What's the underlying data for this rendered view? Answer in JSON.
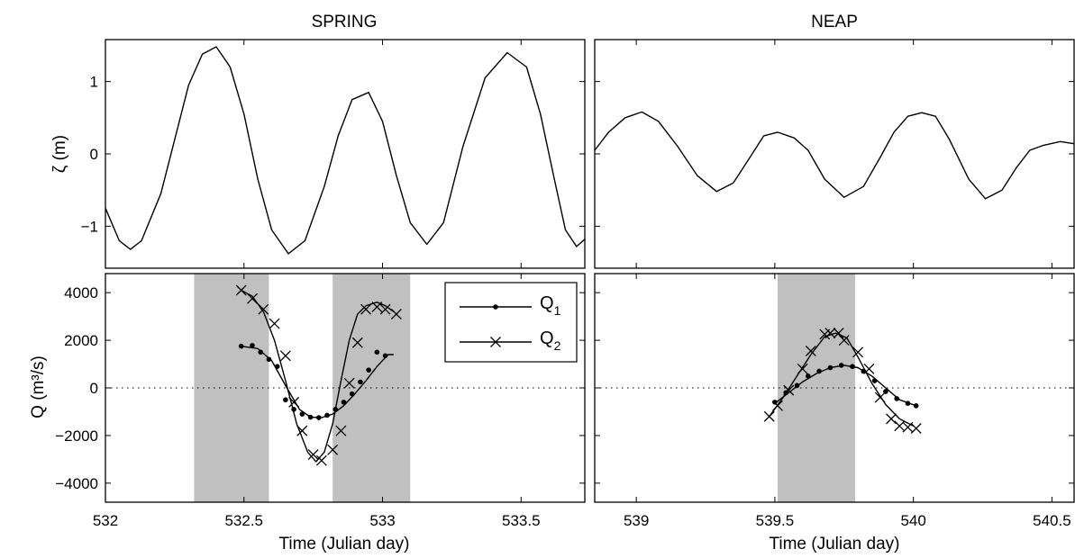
{
  "chart_data": [
    {
      "type": "line",
      "panel": "spring-elevation",
      "title": "SPRING",
      "ylabel": "ζ (m)",
      "xlabel": "",
      "xlim": [
        532,
        533.73
      ],
      "ylim": [
        -1.58,
        1.58
      ],
      "xticks": [
        532,
        532.5,
        533,
        533.5
      ],
      "yticks": [
        -1,
        0,
        1
      ],
      "ytick_labels": [
        "−1",
        "0",
        "1"
      ],
      "xtick_labels_visible": false,
      "series": [
        {
          "x": [
            532.0,
            532.05,
            532.09,
            532.13,
            532.2,
            532.25,
            532.3,
            532.35,
            532.4,
            532.45,
            532.5,
            532.55,
            532.6,
            532.66,
            532.72,
            532.79,
            532.84,
            532.89,
            532.95,
            533.0,
            533.05,
            533.1,
            533.16,
            533.22,
            533.29,
            533.37,
            533.45,
            533.52,
            533.57,
            533.62,
            533.66,
            533.7,
            533.73
          ],
          "y": [
            -0.75,
            -1.2,
            -1.32,
            -1.2,
            -0.55,
            0.2,
            0.95,
            1.38,
            1.48,
            1.2,
            0.55,
            -0.35,
            -1.05,
            -1.38,
            -1.2,
            -0.45,
            0.25,
            0.75,
            0.85,
            0.45,
            -0.3,
            -0.95,
            -1.25,
            -0.95,
            0.1,
            1.05,
            1.4,
            1.2,
            0.55,
            -0.35,
            -1.05,
            -1.28,
            -1.18
          ]
        }
      ]
    },
    {
      "type": "line",
      "panel": "neap-elevation",
      "title": "NEAP",
      "ylabel": "",
      "xlabel": "",
      "xlim": [
        538.85,
        540.58
      ],
      "ylim": [
        -1.58,
        1.58
      ],
      "xticks": [
        539,
        539.5,
        540,
        540.5
      ],
      "yticks": [
        -1,
        0,
        1
      ],
      "ytick_labels_visible": false,
      "xtick_labels_visible": false,
      "series": [
        {
          "x": [
            538.85,
            538.9,
            538.96,
            539.02,
            539.08,
            539.15,
            539.22,
            539.29,
            539.35,
            539.41,
            539.46,
            539.51,
            539.57,
            539.62,
            539.68,
            539.75,
            539.82,
            539.88,
            539.93,
            539.98,
            540.03,
            540.08,
            540.13,
            540.2,
            540.26,
            540.32,
            540.37,
            540.42,
            540.47,
            540.53,
            540.58
          ],
          "y": [
            0.05,
            0.3,
            0.5,
            0.58,
            0.45,
            0.1,
            -0.3,
            -0.52,
            -0.4,
            -0.05,
            0.25,
            0.3,
            0.22,
            0.05,
            -0.35,
            -0.6,
            -0.45,
            -0.05,
            0.3,
            0.52,
            0.57,
            0.52,
            0.2,
            -0.35,
            -0.62,
            -0.5,
            -0.2,
            0.05,
            0.12,
            0.17,
            0.14
          ]
        }
      ]
    },
    {
      "type": "line",
      "panel": "spring-discharge",
      "title": "",
      "xlabel": "Time (Julian day)",
      "ylabel": "Q (m³/s)",
      "xlim": [
        532,
        533.73
      ],
      "ylim": [
        -4800,
        4800
      ],
      "xticks": [
        532,
        532.5,
        533,
        533.5
      ],
      "xtick_labels": [
        "532",
        "532.5",
        "533",
        "533.5"
      ],
      "yticks": [
        -4000,
        -2000,
        0,
        2000,
        4000
      ],
      "ytick_labels": [
        "−4000",
        "−2000",
        "0",
        "2000",
        "4000"
      ],
      "shaded_x_ranges": [
        [
          532.32,
          532.59
        ],
        [
          532.82,
          533.1
        ]
      ],
      "zero_line": "dotted",
      "legend": {
        "placement": "top-right"
      },
      "series": [
        {
          "name": "Q",
          "name_subscript": "1",
          "marker": "dot",
          "curve_x": [
            532.49,
            532.55,
            532.6,
            532.65,
            532.7,
            532.74,
            532.78,
            532.82,
            532.86,
            532.9,
            532.94,
            532.98,
            533.02,
            533.04
          ],
          "curve_y": [
            1750,
            1650,
            1150,
            100,
            -900,
            -1230,
            -1250,
            -1100,
            -750,
            -250,
            300,
            900,
            1400,
            1400
          ],
          "points_x": [
            532.49,
            532.53,
            532.56,
            532.59,
            532.62,
            532.65,
            532.68,
            532.71,
            532.74,
            532.77,
            532.8,
            532.83,
            532.86,
            532.89,
            532.92,
            532.95,
            532.98,
            533.01
          ],
          "points_y": [
            1750,
            1780,
            1500,
            1200,
            900,
            -500,
            -900,
            -1100,
            -1230,
            -1250,
            -1150,
            -900,
            -600,
            -250,
            250,
            750,
            1500,
            1350
          ]
        },
        {
          "name": "Q",
          "name_subscript": "2",
          "marker": "x",
          "curve_x": [
            532.49,
            532.53,
            532.57,
            532.61,
            532.65,
            532.69,
            532.73,
            532.76,
            532.79,
            532.82,
            532.85,
            532.88,
            532.91,
            532.94,
            532.98,
            533.01,
            533.04
          ],
          "curve_y": [
            4100,
            3850,
            3200,
            2000,
            300,
            -1500,
            -2700,
            -3100,
            -2700,
            -1500,
            300,
            2000,
            3100,
            3450,
            3600,
            3450,
            3200
          ],
          "points_x": [
            532.49,
            532.53,
            532.57,
            532.61,
            532.65,
            532.68,
            532.71,
            532.75,
            532.78,
            532.82,
            532.85,
            532.88,
            532.91,
            532.94,
            532.98,
            533.01,
            533.05
          ],
          "points_y": [
            4100,
            3750,
            3300,
            2700,
            1350,
            -600,
            -1800,
            -2800,
            -3050,
            -2600,
            -1800,
            200,
            1900,
            3300,
            3400,
            3300,
            3100
          ]
        }
      ]
    },
    {
      "type": "line",
      "panel": "neap-discharge",
      "title": "",
      "xlabel": "Time (Julian day)",
      "ylabel": "",
      "xlim": [
        538.85,
        540.58
      ],
      "ylim": [
        -4800,
        4800
      ],
      "xticks": [
        539,
        539.5,
        540,
        540.5
      ],
      "xtick_labels": [
        "539",
        "539.5",
        "540",
        "540.5"
      ],
      "yticks": [
        -4000,
        -2000,
        0,
        2000,
        4000
      ],
      "ytick_labels_visible": false,
      "shaded_x_ranges": [
        [
          539.51,
          539.79
        ]
      ],
      "zero_line": "dotted",
      "series": [
        {
          "name": "Q",
          "name_subscript": "1",
          "marker": "dot",
          "curve_x": [
            539.5,
            539.55,
            539.6,
            539.65,
            539.7,
            539.75,
            539.8,
            539.85,
            539.9,
            539.95,
            540.01
          ],
          "curve_y": [
            -650,
            -200,
            250,
            600,
            850,
            950,
            850,
            500,
            0,
            -500,
            -750
          ],
          "points_x": [
            539.5,
            539.54,
            539.58,
            539.62,
            539.66,
            539.7,
            539.74,
            539.78,
            539.82,
            539.86,
            539.9,
            539.94,
            539.98,
            540.01
          ],
          "points_y": [
            -600,
            -200,
            100,
            500,
            700,
            850,
            950,
            900,
            700,
            300,
            -150,
            -450,
            -650,
            -750
          ]
        },
        {
          "name": "Q",
          "name_subscript": "2",
          "marker": "x",
          "curve_x": [
            539.48,
            539.53,
            539.58,
            539.63,
            539.68,
            539.72,
            539.76,
            539.8,
            539.85,
            539.9,
            539.95,
            540.0
          ],
          "curve_y": [
            -1200,
            -400,
            500,
            1400,
            2150,
            2300,
            2100,
            1300,
            200,
            -700,
            -1300,
            -1600
          ],
          "points_x": [
            539.48,
            539.51,
            539.55,
            539.6,
            539.63,
            539.68,
            539.7,
            539.73,
            539.75,
            539.8,
            539.84,
            539.88,
            539.92,
            539.95,
            539.98,
            540.01
          ],
          "points_y": [
            -1200,
            -750,
            -100,
            800,
            1550,
            2250,
            2300,
            2300,
            2000,
            1500,
            800,
            -400,
            -1300,
            -1600,
            -1650,
            -1700
          ]
        }
      ]
    }
  ]
}
